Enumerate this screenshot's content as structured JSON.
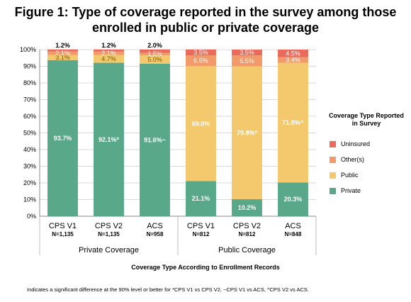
{
  "title": "Figure 1: Type of coverage reported in the survey among those enrolled in public or private coverage",
  "footnote": "Indicates a significant difference at the 90% level or better for *CPS V1 vs CPS V2, ~CPS V1 vs ACS, ^CPS V2  vs ACS.",
  "chart_data": {
    "type": "bar",
    "stacked": true,
    "ylim": [
      0,
      100
    ],
    "yticks": [
      "0%",
      "10%",
      "20%",
      "30%",
      "40%",
      "50%",
      "60%",
      "70%",
      "80%",
      "90%",
      "100%"
    ],
    "xlabel": "Coverage Type According to Enrollment Records",
    "grid": true,
    "legend_title": "Coverage Type Reported in Survey",
    "legend_position": "right",
    "groups": [
      {
        "label": "Private Coverage",
        "bars": [
          {
            "label": "CPS V1",
            "n": "N=1,135"
          },
          {
            "label": "CPS V2",
            "n": "N=1,135"
          },
          {
            "label": "ACS",
            "n": "N=958"
          }
        ]
      },
      {
        "label": "Public Coverage",
        "bars": [
          {
            "label": "CPS V1",
            "n": "N=812"
          },
          {
            "label": "CPS V2",
            "n": "N=812"
          },
          {
            "label": "ACS",
            "n": "N=848"
          }
        ]
      }
    ],
    "series": [
      {
        "name": "Private",
        "color": "#5aa88a",
        "values": [
          93.7,
          92.1,
          91.6,
          21.1,
          10.2,
          20.3
        ],
        "labels": [
          "93.7%",
          "92.1%*",
          "91.6%~",
          "21.1%",
          "10.2%",
          "20.3%"
        ]
      },
      {
        "name": "Public",
        "color": "#f4c96e",
        "values": [
          3.1,
          4.7,
          5.0,
          69.0,
          79.8,
          71.8
        ],
        "labels": [
          "3.1%",
          "4.7%",
          "5.0%",
          "69.0%",
          "79.8%*",
          "71.8%^"
        ]
      },
      {
        "name": "Other(s)",
        "color": "#f29a6a",
        "values": [
          2.1,
          2.1,
          1.5,
          6.5,
          6.5,
          3.4
        ],
        "labels": [
          "2.1%",
          "2.1%",
          "1.5%",
          "6.5%",
          "6.5%",
          "3.4%"
        ]
      },
      {
        "name": "Uninsured",
        "color": "#ea6a5c",
        "values": [
          1.2,
          1.2,
          2.0,
          3.5,
          3.5,
          4.5
        ],
        "labels": [
          "1.2%",
          "1.2%",
          "2.0%",
          "3.5%",
          "3.5%",
          "4.5%"
        ]
      }
    ],
    "legend_order": [
      "Uninsured",
      "Other(s)",
      "Public",
      "Private"
    ]
  }
}
